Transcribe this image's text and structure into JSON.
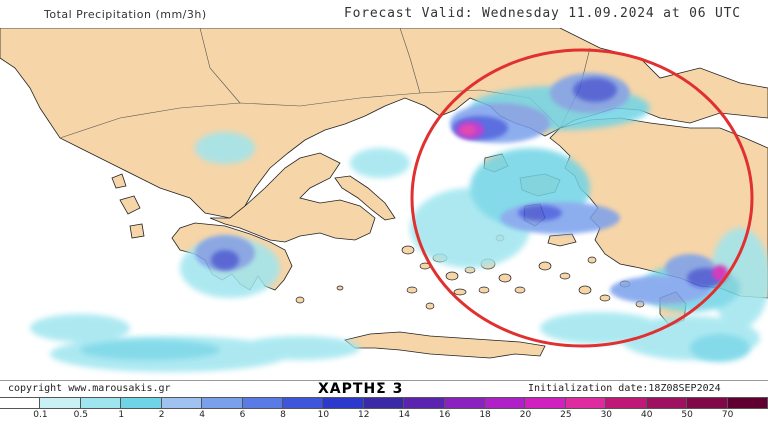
{
  "header": {
    "title": "Total Precipitation (mm/3h)",
    "forecast": "Forecast Valid:   Wednesday 11.09.2024 at 06 UTC"
  },
  "footer": {
    "copyright": "copyright www.marousakis.gr",
    "map_label": "ΧΑΡΤΗΣ 3",
    "initialization": "Initialization date:18Z08SEP2024"
  },
  "legend": {
    "labels": [
      "0.1",
      "0.5",
      "1",
      "2",
      "4",
      "6",
      "8",
      "10",
      "12",
      "14",
      "16",
      "18",
      "20",
      "25",
      "30",
      "40",
      "50",
      "70"
    ],
    "colors": [
      "#ffffff",
      "#c8f0f5",
      "#9fe5ef",
      "#6fd4e6",
      "#9fc2f0",
      "#7aa0ec",
      "#5a7ae6",
      "#3f56dc",
      "#2b3acc",
      "#3a2aa8",
      "#5a24b0",
      "#8a22c0",
      "#b020c8",
      "#d020c0",
      "#e02aa0",
      "#c01878",
      "#a01060",
      "#800848",
      "#600030"
    ]
  },
  "colors": {
    "land": "#f6d5a8",
    "sea": "#ffffff",
    "circle": "#e03030"
  }
}
